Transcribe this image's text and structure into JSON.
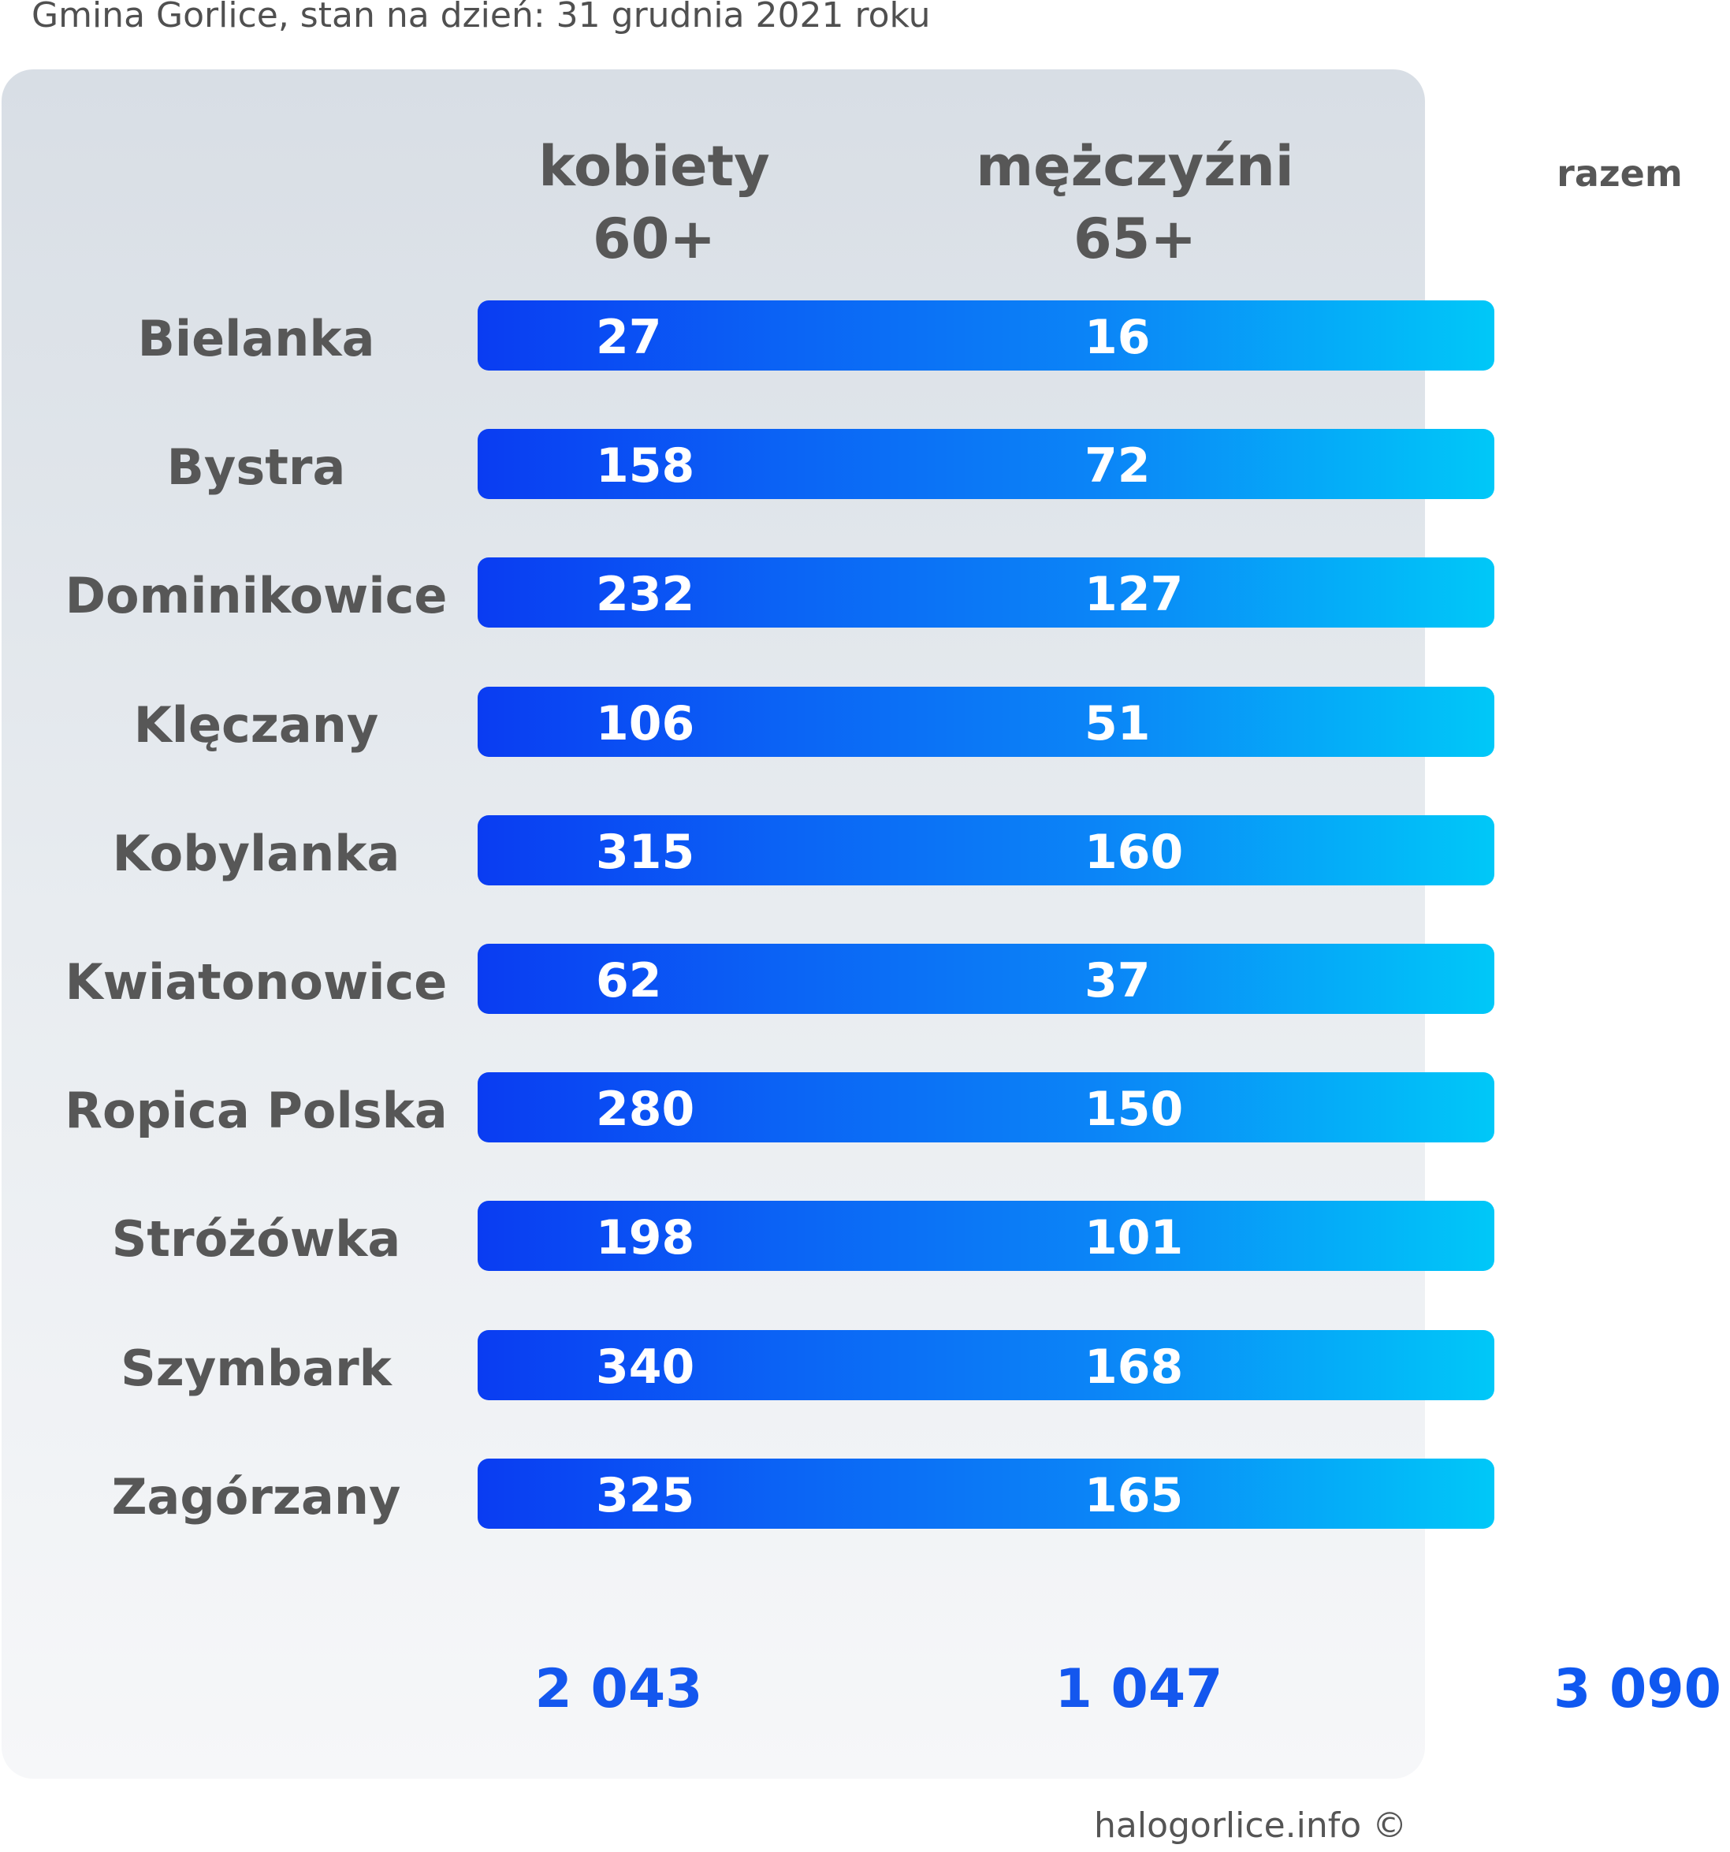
{
  "subtitle": "Gmina Gorlice, stan na dzień: 31 grudnia 2021 roku",
  "headers": {
    "women_line1": "kobiety",
    "women_line2": "60+",
    "men_line1": "mężczyźni",
    "men_line2": "65+",
    "total": "razem"
  },
  "colors": {
    "bar_start": "#0a3cf2",
    "bar_end": "#00c8f8",
    "totals": "#1457ee",
    "labels": "#575757"
  },
  "chart_data": {
    "type": "table",
    "categories": [
      "Bielanka",
      "Bystra",
      "Dominikowice",
      "Klęczany",
      "Kobylanka",
      "Kwiatonowice",
      "Ropica Polska",
      "Stróżówka",
      "Szymbark",
      "Zagórzany"
    ],
    "series": [
      {
        "name": "kobiety 60+",
        "values": [
          27,
          158,
          232,
          106,
          315,
          62,
          280,
          198,
          340,
          325
        ]
      },
      {
        "name": "mężczyźni 65+",
        "values": [
          16,
          72,
          127,
          51,
          160,
          37,
          150,
          101,
          168,
          165
        ]
      }
    ],
    "rows": [
      {
        "label": "Bielanka",
        "women": "27",
        "men": "16"
      },
      {
        "label": "Bystra",
        "women": "158",
        "men": "72"
      },
      {
        "label": "Dominikowice",
        "women": "232",
        "men": "127"
      },
      {
        "label": "Klęczany",
        "women": "106",
        "men": "51"
      },
      {
        "label": "Kobylanka",
        "women": "315",
        "men": "160"
      },
      {
        "label": "Kwiatonowice",
        "women": "62",
        "men": "37"
      },
      {
        "label": "Ropica Polska",
        "women": "280",
        "men": "150"
      },
      {
        "label": "Stróżówka",
        "women": "198",
        "men": "101"
      },
      {
        "label": "Szymbark",
        "women": "340",
        "men": "168"
      },
      {
        "label": "Zagórzany",
        "women": "325",
        "men": "165"
      }
    ],
    "totals": {
      "women": "2 043",
      "men": "1 047",
      "all": "3 090"
    }
  },
  "credit": "halogorlice.info ©"
}
